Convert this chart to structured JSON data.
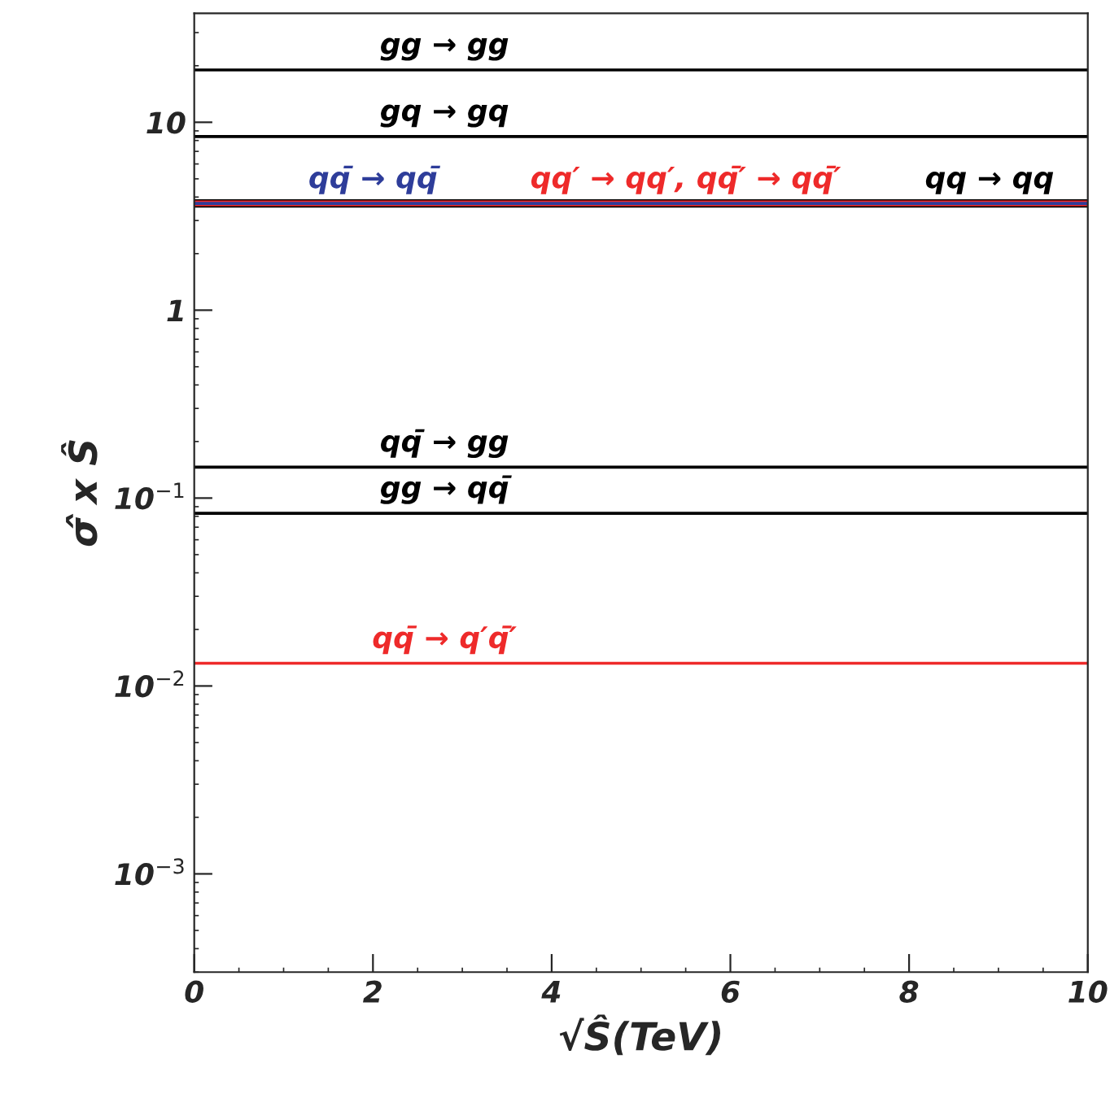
{
  "chart_data": {
    "type": "line",
    "xlabel": "√Ŝ(TeV)",
    "ylabel": "σ̂ x Ŝ",
    "log": "y",
    "xlim": [
      0,
      10
    ],
    "xticks": [
      0,
      2,
      4,
      6,
      8,
      10
    ],
    "ylim": [
      0.0003,
      38
    ],
    "yticks": [
      {
        "value": 0.001,
        "label": "10$^{−3}$"
      },
      {
        "value": 0.01,
        "label": "10$^{−2}$"
      },
      {
        "value": 0.1,
        "label": "10$^{−1}$"
      },
      1,
      10
    ],
    "grid": false,
    "line_style": "solid",
    "ref_lines": [
      {
        "axis": "y",
        "value": 19,
        "label": "gg → gg",
        "color": "#000000"
      },
      {
        "axis": "y",
        "value": 8.4,
        "label": "gq → gq",
        "color": "#000000"
      },
      {
        "axis": "y",
        "value": 3.7,
        "label": "qq → qq",
        "color": "#000000"
      },
      {
        "axis": "y",
        "value": 3.7,
        "label": "qq′ → qq′, qq̄′ → qq̄′",
        "color": "#ee2a2a"
      },
      {
        "axis": "y",
        "value": 3.7,
        "label": "qq̄ → qq̄",
        "color": "#2e3d9a"
      },
      {
        "axis": "y",
        "value": 0.146,
        "label": "qq̄ → gg",
        "color": "#000000"
      },
      {
        "axis": "y",
        "value": 0.083,
        "label": "gg → qq̄",
        "color": "#000000"
      },
      {
        "axis": "y",
        "value": 0.0132,
        "label": "qq̄ → q′q̄′",
        "color": "#ee2a2a"
      }
    ]
  }
}
